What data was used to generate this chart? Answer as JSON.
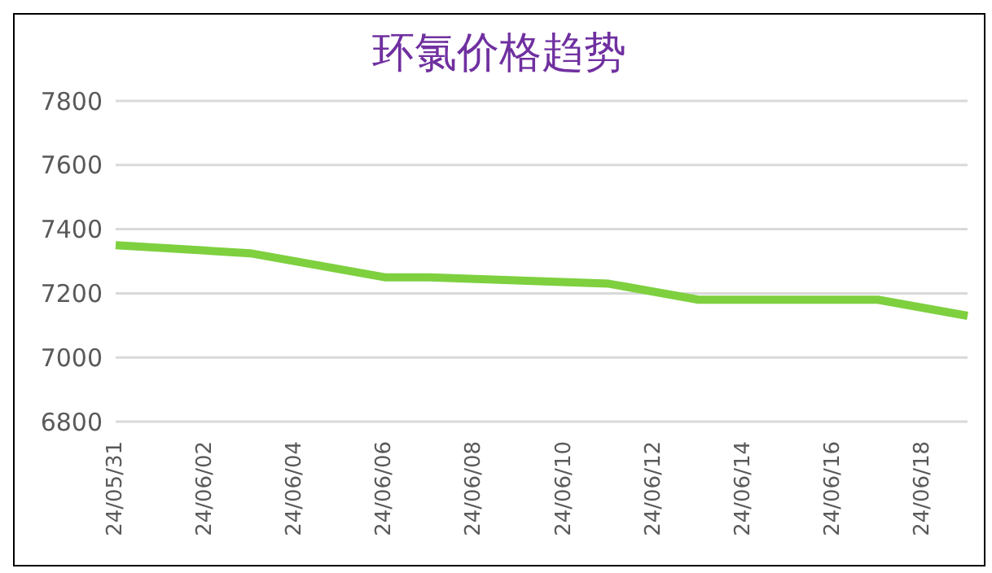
{
  "chart_data": {
    "type": "line",
    "title": "环氯价格趋势",
    "categories": [
      "24/05/31",
      null,
      "24/06/02",
      null,
      "24/06/04",
      null,
      "24/06/06",
      null,
      "24/06/08",
      null,
      "24/06/10",
      null,
      "24/06/12",
      null,
      "24/06/14",
      null,
      "24/06/16",
      null,
      "24/06/18",
      null
    ],
    "series": [
      {
        "color": "#7ed03f",
        "values": [
          7350,
          null,
          null,
          7325,
          null,
          null,
          7250,
          7250,
          null,
          null,
          null,
          7230,
          null,
          7180,
          null,
          null,
          null,
          7180,
          null,
          7130
        ]
      }
    ],
    "ylim": [
      6800,
      7800
    ],
    "yticks": [
      6800,
      7000,
      7200,
      7400,
      7600,
      7800
    ],
    "grid": "y",
    "legend": false,
    "marker": "none",
    "line_style": "solid"
  }
}
